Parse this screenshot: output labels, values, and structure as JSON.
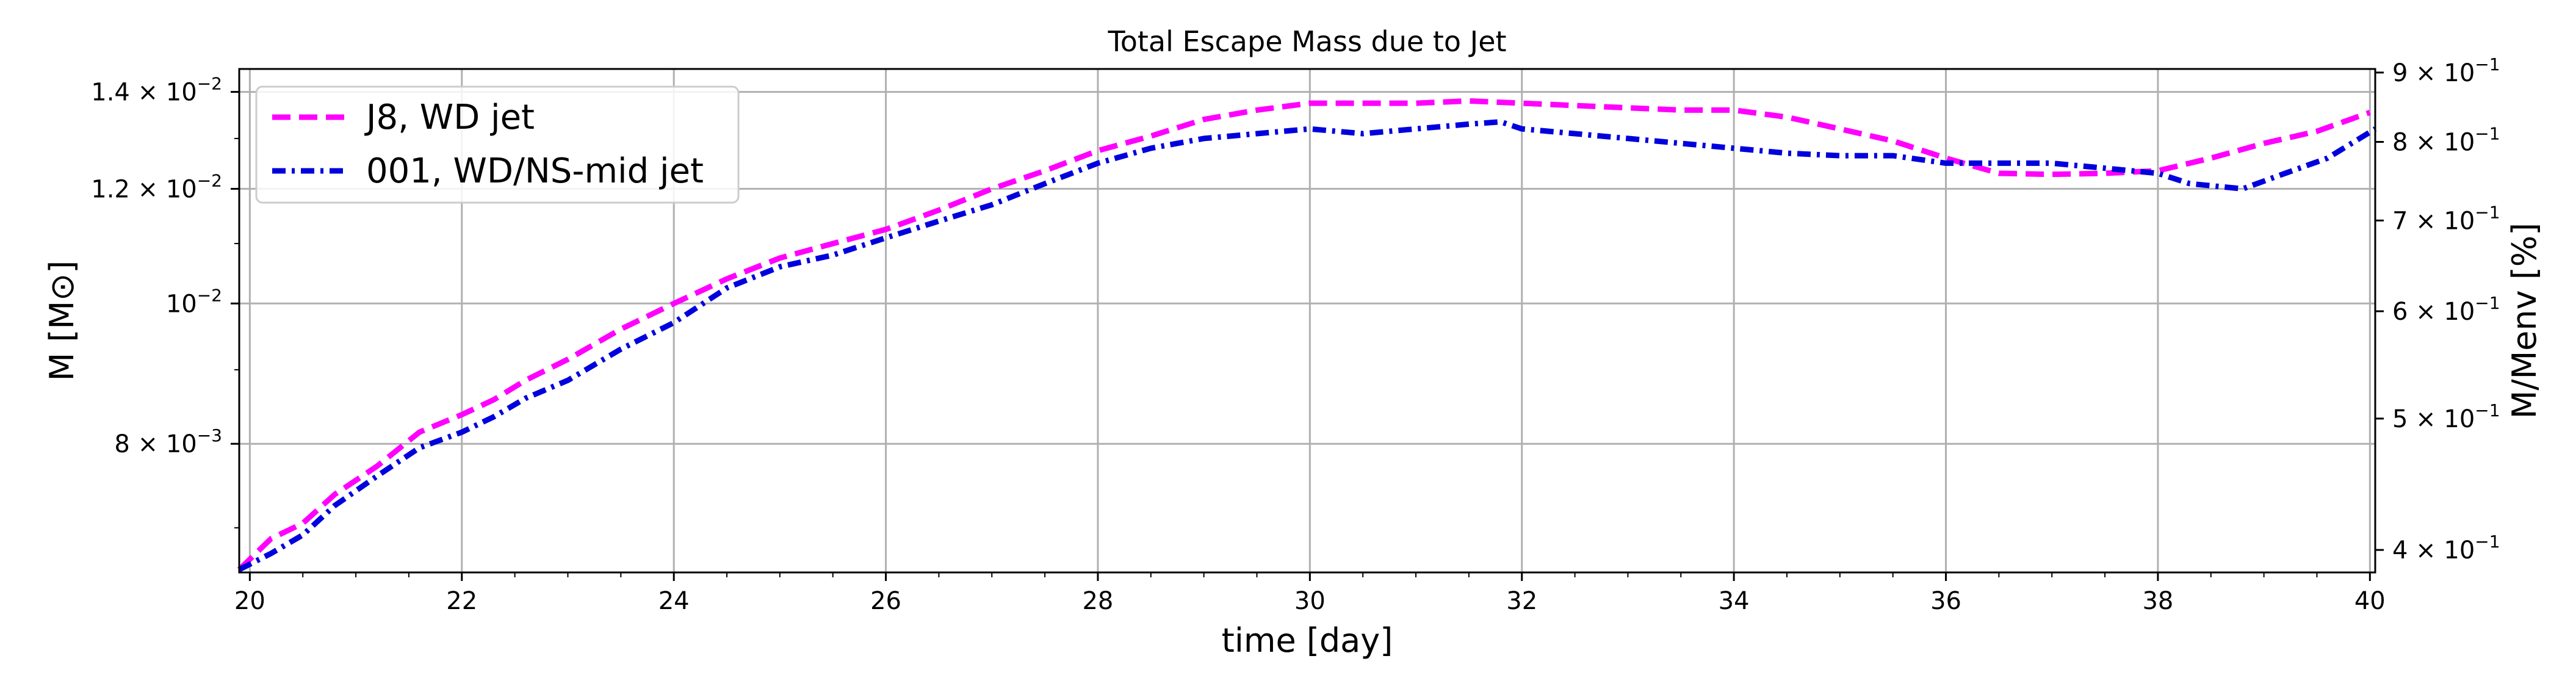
{
  "chart_data": {
    "type": "line",
    "title": "Total Escape Mass due to Jet",
    "xlabel": "time [day]",
    "ylabel": "M [M⊙]",
    "ylabel_right": "M/Menv [%]",
    "xlim": [
      19.9,
      40.05
    ],
    "ylim": [
      0.00652,
      0.01452
    ],
    "yscale": "log",
    "grid": true,
    "legend_position": "upper-left",
    "x_ticks": [
      20,
      22,
      24,
      26,
      28,
      30,
      32,
      34,
      36,
      38,
      40
    ],
    "y_ticks_left": [
      {
        "value": 0.008,
        "mantissa": "8",
        "sep": " × ",
        "base": "10",
        "exp": "−3"
      },
      {
        "value": 0.01,
        "mantissa": "",
        "sep": "",
        "base": "10",
        "exp": "−2"
      },
      {
        "value": 0.012,
        "mantissa": "1.2",
        "sep": " × ",
        "base": "10",
        "exp": "−2"
      },
      {
        "value": 0.014,
        "mantissa": "1.4",
        "sep": " × ",
        "base": "10",
        "exp": "−2"
      }
    ],
    "y_ticks_right": [
      {
        "value": 0.4,
        "mantissa": "4",
        "base": "10",
        "exp": "−1"
      },
      {
        "value": 0.5,
        "mantissa": "5",
        "base": "10",
        "exp": "−1"
      },
      {
        "value": 0.6,
        "mantissa": "6",
        "base": "10",
        "exp": "−1"
      },
      {
        "value": 0.7,
        "mantissa": "7",
        "base": "10",
        "exp": "−1"
      },
      {
        "value": 0.8,
        "mantissa": "8",
        "base": "10",
        "exp": "−1"
      },
      {
        "value": 0.9,
        "mantissa": "9",
        "base": "10",
        "exp": "−1"
      }
    ],
    "right_axis_ylim": [
      0.385,
      0.9055
    ],
    "series": [
      {
        "name": "J8, WD jet",
        "color": "#ff00ff",
        "style": "dashed",
        "x": [
          19.9,
          20.2,
          20.5,
          20.8,
          21.2,
          21.6,
          22.0,
          22.3,
          22.6,
          23.0,
          23.5,
          24.0,
          24.5,
          25.0,
          25.5,
          26.0,
          26.5,
          27.0,
          27.5,
          28.0,
          28.5,
          29.0,
          29.5,
          30.0,
          30.5,
          31.0,
          31.5,
          32.0,
          32.5,
          33.0,
          33.5,
          34.0,
          34.5,
          35.0,
          35.5,
          36.0,
          36.5,
          37.0,
          37.5,
          38.0,
          38.5,
          39.0,
          39.5,
          40.0
        ],
        "y": [
          0.00655,
          0.00688,
          0.00705,
          0.00738,
          0.00772,
          0.00815,
          0.00838,
          0.00858,
          0.00885,
          0.00915,
          0.0096,
          0.01,
          0.0104,
          0.01075,
          0.011,
          0.01125,
          0.0116,
          0.012,
          0.01235,
          0.01275,
          0.01305,
          0.0134,
          0.0136,
          0.01375,
          0.01375,
          0.01375,
          0.0138,
          0.01375,
          0.0137,
          0.01365,
          0.0136,
          0.0136,
          0.01345,
          0.0132,
          0.01295,
          0.0126,
          0.0123,
          0.01228,
          0.0123,
          0.01235,
          0.0126,
          0.0129,
          0.01315,
          0.01355
        ]
      },
      {
        "name": "001, WD/NS-mid jet",
        "color": "#0000dd",
        "style": "dashdot",
        "x": [
          19.9,
          20.2,
          20.5,
          20.8,
          21.2,
          21.6,
          22.0,
          22.3,
          22.6,
          23.0,
          23.5,
          24.0,
          24.5,
          25.0,
          25.5,
          26.0,
          26.5,
          27.0,
          27.5,
          28.0,
          28.5,
          29.0,
          29.5,
          30.0,
          30.5,
          31.0,
          31.5,
          31.8,
          32.0,
          32.5,
          33.0,
          33.5,
          34.0,
          34.5,
          35.0,
          35.5,
          36.0,
          36.5,
          37.0,
          37.5,
          38.0,
          38.3,
          38.8,
          39.2,
          39.6,
          40.05
        ],
        "y": [
          0.00655,
          0.00672,
          0.00692,
          0.00725,
          0.0076,
          0.00795,
          0.00815,
          0.00835,
          0.0086,
          0.00885,
          0.0093,
          0.0097,
          0.01025,
          0.0106,
          0.0108,
          0.0111,
          0.0114,
          0.0117,
          0.0121,
          0.0125,
          0.0128,
          0.013,
          0.0131,
          0.0132,
          0.0131,
          0.0132,
          0.0133,
          0.01335,
          0.0132,
          0.0131,
          0.013,
          0.0129,
          0.0128,
          0.0127,
          0.01265,
          0.01265,
          0.0125,
          0.0125,
          0.0125,
          0.0124,
          0.0123,
          0.0121,
          0.012,
          0.0123,
          0.0126,
          0.0132
        ]
      }
    ]
  }
}
